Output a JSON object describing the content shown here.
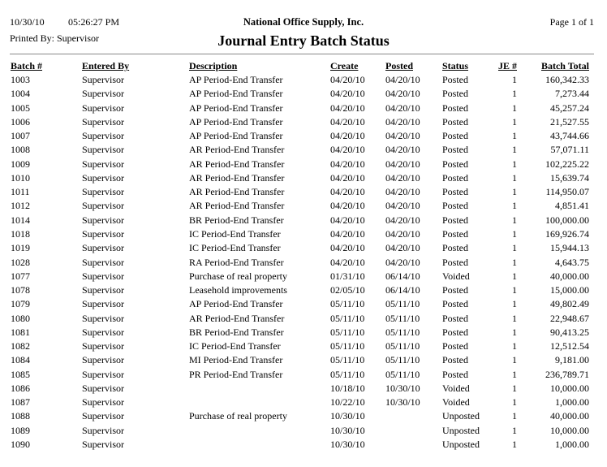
{
  "report": {
    "date": "10/30/10",
    "time": "05:26:27 PM",
    "company": "National Office Supply, Inc.",
    "page": "Page 1 of 1",
    "printed_by": "Printed By: Supervisor",
    "title": "Journal Entry Batch Status"
  },
  "columns": [
    "Batch #",
    "Entered By",
    "Description",
    "Create",
    "Posted",
    "Status",
    "JE #",
    "Batch Total"
  ],
  "rows": [
    [
      "1003",
      "Supervisor",
      "AP Period-End Transfer",
      "04/20/10",
      "04/20/10",
      "Posted",
      "1",
      "160,342.33"
    ],
    [
      "1004",
      "Supervisor",
      "AP Period-End Transfer",
      "04/20/10",
      "04/20/10",
      "Posted",
      "1",
      "7,273.44"
    ],
    [
      "1005",
      "Supervisor",
      "AP Period-End Transfer",
      "04/20/10",
      "04/20/10",
      "Posted",
      "1",
      "45,257.24"
    ],
    [
      "1006",
      "Supervisor",
      "AP Period-End Transfer",
      "04/20/10",
      "04/20/10",
      "Posted",
      "1",
      "21,527.55"
    ],
    [
      "1007",
      "Supervisor",
      "AP Period-End Transfer",
      "04/20/10",
      "04/20/10",
      "Posted",
      "1",
      "43,744.66"
    ],
    [
      "1008",
      "Supervisor",
      "AR Period-End Transfer",
      "04/20/10",
      "04/20/10",
      "Posted",
      "1",
      "57,071.11"
    ],
    [
      "1009",
      "Supervisor",
      "AR Period-End Transfer",
      "04/20/10",
      "04/20/10",
      "Posted",
      "1",
      "102,225.22"
    ],
    [
      "1010",
      "Supervisor",
      "AR Period-End Transfer",
      "04/20/10",
      "04/20/10",
      "Posted",
      "1",
      "15,639.74"
    ],
    [
      "1011",
      "Supervisor",
      "AR Period-End Transfer",
      "04/20/10",
      "04/20/10",
      "Posted",
      "1",
      "114,950.07"
    ],
    [
      "1012",
      "Supervisor",
      "AR Period-End Transfer",
      "04/20/10",
      "04/20/10",
      "Posted",
      "1",
      "4,851.41"
    ],
    [
      "1014",
      "Supervisor",
      "BR Period-End Transfer",
      "04/20/10",
      "04/20/10",
      "Posted",
      "1",
      "100,000.00"
    ],
    [
      "1018",
      "Supervisor",
      "IC Period-End Transfer",
      "04/20/10",
      "04/20/10",
      "Posted",
      "1",
      "169,926.74"
    ],
    [
      "1019",
      "Supervisor",
      "IC Period-End Transfer",
      "04/20/10",
      "04/20/10",
      "Posted",
      "1",
      "15,944.13"
    ],
    [
      "1028",
      "Supervisor",
      "RA Period-End Transfer",
      "04/20/10",
      "04/20/10",
      "Posted",
      "1",
      "4,643.75"
    ],
    [
      "1077",
      "Supervisor",
      "Purchase of real property",
      "01/31/10",
      "06/14/10",
      "Voided",
      "1",
      "40,000.00"
    ],
    [
      "1078",
      "Supervisor",
      "Leasehold improvements",
      "02/05/10",
      "06/14/10",
      "Posted",
      "1",
      "15,000.00"
    ],
    [
      "1079",
      "Supervisor",
      "AP Period-End Transfer",
      "05/11/10",
      "05/11/10",
      "Posted",
      "1",
      "49,802.49"
    ],
    [
      "1080",
      "Supervisor",
      "AR Period-End Transfer",
      "05/11/10",
      "05/11/10",
      "Posted",
      "1",
      "22,948.67"
    ],
    [
      "1081",
      "Supervisor",
      "BR Period-End Transfer",
      "05/11/10",
      "05/11/10",
      "Posted",
      "1",
      "90,413.25"
    ],
    [
      "1082",
      "Supervisor",
      "IC Period-End Transfer",
      "05/11/10",
      "05/11/10",
      "Posted",
      "1",
      "12,512.54"
    ],
    [
      "1084",
      "Supervisor",
      "MI Period-End Transfer",
      "05/11/10",
      "05/11/10",
      "Posted",
      "1",
      "9,181.00"
    ],
    [
      "1085",
      "Supervisor",
      "PR Period-End Transfer",
      "05/11/10",
      "05/11/10",
      "Posted",
      "1",
      "236,789.71"
    ],
    [
      "1086",
      "Supervisor",
      "",
      "10/18/10",
      "10/30/10",
      "Voided",
      "1",
      "10,000.00"
    ],
    [
      "1087",
      "Supervisor",
      "",
      "10/22/10",
      "10/30/10",
      "Voided",
      "1",
      "1,000.00"
    ],
    [
      "1088",
      "Supervisor",
      "Purchase of real property",
      "10/30/10",
      "",
      "Unposted",
      "1",
      "40,000.00"
    ],
    [
      "1089",
      "Supervisor",
      "",
      "10/30/10",
      "",
      "Unposted",
      "1",
      "10,000.00"
    ],
    [
      "1090",
      "Supervisor",
      "",
      "10/30/10",
      "",
      "Unposted",
      "1",
      "1,000.00"
    ]
  ]
}
